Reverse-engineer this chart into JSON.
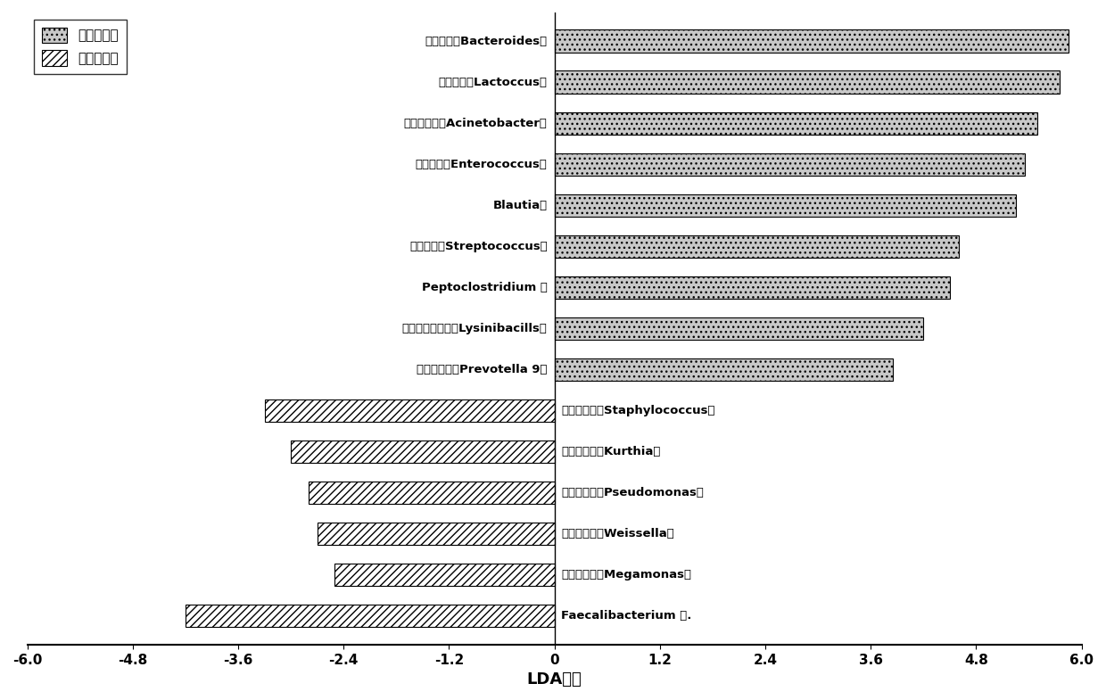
{
  "positive_bars": [
    {
      "label": "拟杆菌属（Bacteroides）",
      "value": 5.85
    },
    {
      "label": "乳球菌属（Lactoccus）",
      "value": 5.75
    },
    {
      "label": "不动杆菌属（Acinetobacter）",
      "value": 5.5
    },
    {
      "label": "肠球菌属（Enterococcus）",
      "value": 5.35
    },
    {
      "label": "Blautia属",
      "value": 5.25
    },
    {
      "label": "锤球菌属（Streptococcus）",
      "value": 4.6
    },
    {
      "label": "Peptoclostridium 属",
      "value": 4.5
    },
    {
      "label": "短小芽孢杆菌属（Lysinibacills）",
      "value": 4.2
    },
    {
      "label": "普雷沃菌属（Prevotella 9）",
      "value": 3.85
    }
  ],
  "negative_bars": [
    {
      "label": "葡萄球菌属（Staphylococcus）",
      "value": -3.3
    },
    {
      "label": "库特氏菌属（Kurthia）",
      "value": -3.0
    },
    {
      "label": "假单胞菌属（Pseudomonas）",
      "value": -2.8
    },
    {
      "label": "魏斯氏菌属（Weissella）",
      "value": -2.7
    },
    {
      "label": "巨单胞菌属（Megamonas）",
      "value": -2.5
    },
    {
      "label": "Faecalibacterium 属.",
      "value": -4.2
    }
  ],
  "xlim": [
    -6.0,
    6.0
  ],
  "xticks": [
    -6.0,
    -4.8,
    -3.6,
    -2.4,
    -1.2,
    0,
    1.2,
    2.4,
    3.6,
    4.8,
    6.0
  ],
  "xlabel": "LDA评分",
  "legend_positive": "化疗有效组",
  "legend_negative": "化疗失效组",
  "bar_height": 0.55,
  "background_color": "white"
}
